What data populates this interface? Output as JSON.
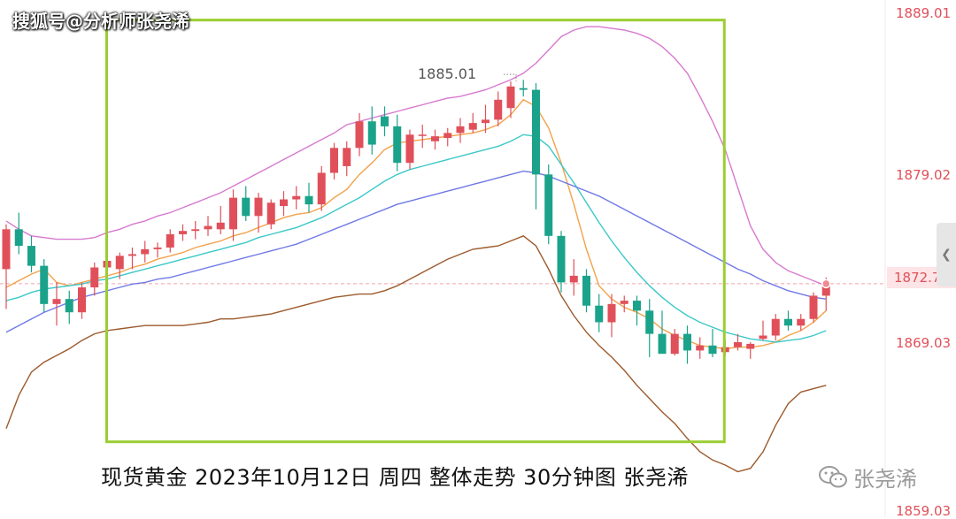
{
  "watermark": "搜狐号@分析师张尧浠",
  "caption": "现货黄金  2023年10月12日  周四 整体走势 30分钟图  张尧浠",
  "wechat_label": "张尧浠",
  "peak_label": "1885.01",
  "current_price": "1872.72",
  "price_axis": [
    "1889.01",
    "1879.02",
    "1869.03",
    "1859.03"
  ],
  "icons": {
    "wechat": "wechat-icon",
    "side_tab": "chevron-left-icon"
  },
  "colors": {
    "up": "#e0505a",
    "down": "#1aa38a",
    "ma5": "#f2a24a",
    "ma10": "#3cc8c8",
    "ma30": "#6f79e6",
    "boll_upper": "#d77ad0",
    "boll_lower": "#9c5a2c",
    "highlight_box": "#9acd32"
  },
  "chart_data": {
    "type": "candlestick",
    "timeframe": "30分钟",
    "instrument": "现货黄金",
    "y_ticks": [
      1889.01,
      1879.02,
      1869.03,
      1859.03
    ],
    "ylim": [
      1859.03,
      1889.5
    ],
    "current_price": 1872.72,
    "peak": 1885.01,
    "candles": [
      [
        1873.6,
        1876.3,
        1871.2,
        1876.0
      ],
      [
        1876.0,
        1877.0,
        1874.5,
        1875.0
      ],
      [
        1875.0,
        1875.6,
        1873.4,
        1873.8
      ],
      [
        1873.8,
        1874.2,
        1871.0,
        1871.5
      ],
      [
        1871.5,
        1872.8,
        1870.2,
        1871.8
      ],
      [
        1871.8,
        1872.3,
        1870.3,
        1871.0
      ],
      [
        1871.0,
        1872.8,
        1870.6,
        1872.5
      ],
      [
        1872.5,
        1874.0,
        1872.0,
        1873.7
      ],
      [
        1873.7,
        1874.4,
        1873.2,
        1874.1
      ],
      [
        1873.6,
        1874.6,
        1873.0,
        1874.4
      ],
      [
        1874.4,
        1874.9,
        1873.6,
        1874.5
      ],
      [
        1874.5,
        1875.3,
        1874.0,
        1874.8
      ],
      [
        1874.8,
        1875.2,
        1874.3,
        1874.9
      ],
      [
        1874.9,
        1876.0,
        1874.6,
        1875.7
      ],
      [
        1875.7,
        1876.3,
        1875.3,
        1875.9
      ],
      [
        1875.9,
        1876.5,
        1875.4,
        1876.0
      ],
      [
        1876.0,
        1876.8,
        1875.6,
        1876.2
      ],
      [
        1876.0,
        1877.4,
        1875.7,
        1876.4
      ],
      [
        1876.0,
        1878.4,
        1875.3,
        1877.9
      ],
      [
        1877.9,
        1878.6,
        1876.5,
        1876.8
      ],
      [
        1876.8,
        1878.2,
        1875.8,
        1877.9
      ],
      [
        1876.3,
        1877.8,
        1876.0,
        1877.6
      ],
      [
        1877.4,
        1878.3,
        1876.8,
        1877.8
      ],
      [
        1877.8,
        1878.6,
        1877.2,
        1878.0
      ],
      [
        1878.0,
        1878.8,
        1877.0,
        1877.5
      ],
      [
        1877.5,
        1879.8,
        1877.1,
        1879.4
      ],
      [
        1879.4,
        1881.2,
        1879.0,
        1880.9
      ],
      [
        1879.8,
        1881.3,
        1879.2,
        1880.9
      ],
      [
        1880.9,
        1883.0,
        1880.4,
        1882.5
      ],
      [
        1882.5,
        1883.4,
        1880.5,
        1881.1
      ],
      [
        1882.8,
        1883.4,
        1881.6,
        1882.2
      ],
      [
        1882.2,
        1882.9,
        1879.5,
        1880.0
      ],
      [
        1880.0,
        1882.0,
        1879.6,
        1881.7
      ],
      [
        1881.7,
        1882.3,
        1880.9,
        1881.7
      ],
      [
        1881.3,
        1882.0,
        1880.8,
        1881.6
      ],
      [
        1881.5,
        1882.1,
        1881.0,
        1881.8
      ],
      [
        1881.8,
        1882.7,
        1881.2,
        1882.2
      ],
      [
        1882.0,
        1883.0,
        1881.8,
        1882.4
      ],
      [
        1882.4,
        1883.5,
        1881.8,
        1882.6
      ],
      [
        1882.6,
        1884.3,
        1882.2,
        1883.8
      ],
      [
        1883.3,
        1884.9,
        1882.7,
        1884.6
      ],
      [
        1884.5,
        1885.0,
        1884.0,
        1884.4
      ],
      [
        1884.4,
        1884.8,
        1877.2,
        1879.3
      ],
      [
        1879.3,
        1879.9,
        1875.1,
        1875.6
      ],
      [
        1875.6,
        1875.9,
        1872.2,
        1872.8
      ],
      [
        1872.8,
        1874.2,
        1872.0,
        1873.2
      ],
      [
        1873.2,
        1873.6,
        1871.0,
        1871.4
      ],
      [
        1871.4,
        1872.1,
        1869.8,
        1870.4
      ],
      [
        1870.4,
        1872.1,
        1869.5,
        1871.5
      ],
      [
        1871.5,
        1872.0,
        1871.0,
        1871.7
      ],
      [
        1871.7,
        1872.0,
        1870.2,
        1871.1
      ],
      [
        1871.1,
        1871.8,
        1868.3,
        1869.7
      ],
      [
        1869.7,
        1871.1,
        1868.6,
        1868.5
      ],
      [
        1868.5,
        1870.0,
        1868.4,
        1869.7
      ],
      [
        1869.7,
        1870.2,
        1867.9,
        1868.7
      ],
      [
        1868.7,
        1869.5,
        1868.2,
        1869.0
      ],
      [
        1869.0,
        1870.0,
        1868.3,
        1868.5
      ],
      [
        1868.6,
        1869.3,
        1868.4,
        1868.9
      ],
      [
        1868.9,
        1869.7,
        1868.7,
        1869.2
      ],
      [
        1868.8,
        1869.2,
        1868.2,
        1869.1
      ],
      [
        1869.4,
        1870.5,
        1869.3,
        1869.6
      ],
      [
        1869.6,
        1870.9,
        1869.3,
        1870.6
      ],
      [
        1870.6,
        1871.1,
        1869.9,
        1870.2
      ],
      [
        1870.2,
        1870.9,
        1869.9,
        1870.6
      ],
      [
        1870.6,
        1872.2,
        1870.4,
        1872.0
      ],
      [
        1872.0,
        1873.1,
        1871.1,
        1872.7
      ]
    ],
    "series": [
      {
        "name": "MA5",
        "values": [
          1872.5,
          1872.9,
          1873.3,
          1873.6,
          1872.8,
          1872.6,
          1872.8,
          1873.0,
          1873.2,
          1873.4,
          1873.7,
          1873.9,
          1874.2,
          1874.4,
          1874.6,
          1874.9,
          1875.1,
          1875.3,
          1875.6,
          1875.8,
          1876.1,
          1876.4,
          1876.7,
          1876.9,
          1877.0,
          1877.3,
          1877.9,
          1878.4,
          1879.3,
          1880.0,
          1880.8,
          1881.2,
          1881.3,
          1881.4,
          1881.5,
          1881.6,
          1881.7,
          1881.8,
          1882.0,
          1882.3,
          1882.9,
          1883.8,
          1883.4,
          1882.1,
          1880.0,
          1877.5,
          1874.8,
          1872.6,
          1871.8,
          1871.3,
          1871.0,
          1870.6,
          1870.0,
          1869.6,
          1869.3,
          1869.0,
          1868.9,
          1868.8,
          1868.9,
          1868.9,
          1869.0,
          1869.2,
          1869.6,
          1869.9,
          1870.4,
          1871.1
        ]
      },
      {
        "name": "MA10",
        "values": [
          1871.7,
          1871.9,
          1872.2,
          1872.4,
          1872.5,
          1872.6,
          1872.7,
          1872.9,
          1873.0,
          1873.2,
          1873.4,
          1873.6,
          1873.8,
          1874.0,
          1874.2,
          1874.4,
          1874.6,
          1874.8,
          1875.0,
          1875.2,
          1875.5,
          1875.7,
          1875.9,
          1876.1,
          1876.4,
          1876.7,
          1877.1,
          1877.5,
          1877.9,
          1878.4,
          1878.9,
          1879.3,
          1879.6,
          1879.8,
          1880.0,
          1880.2,
          1880.4,
          1880.6,
          1880.8,
          1881.0,
          1881.3,
          1881.7,
          1881.6,
          1881.0,
          1879.9,
          1878.8,
          1877.6,
          1876.4,
          1875.3,
          1874.3,
          1873.4,
          1872.6,
          1871.9,
          1871.3,
          1870.8,
          1870.4,
          1870.1,
          1869.8,
          1869.6,
          1869.4,
          1869.3,
          1869.2,
          1869.3,
          1869.4,
          1869.6,
          1869.9
        ]
      },
      {
        "name": "MA30",
        "values": [
          1869.8,
          1870.2,
          1870.6,
          1871.0,
          1871.3,
          1871.6,
          1871.9,
          1872.1,
          1872.3,
          1872.5,
          1872.7,
          1872.8,
          1873.0,
          1873.1,
          1873.3,
          1873.5,
          1873.7,
          1873.9,
          1874.1,
          1874.3,
          1874.5,
          1874.7,
          1874.9,
          1875.1,
          1875.4,
          1875.7,
          1876.0,
          1876.3,
          1876.6,
          1876.9,
          1877.2,
          1877.5,
          1877.7,
          1877.9,
          1878.1,
          1878.3,
          1878.5,
          1878.7,
          1878.9,
          1879.1,
          1879.3,
          1879.5,
          1879.4,
          1879.2,
          1878.9,
          1878.6,
          1878.3,
          1878.0,
          1877.6,
          1877.2,
          1876.8,
          1876.4,
          1876.0,
          1875.6,
          1875.2,
          1874.8,
          1874.4,
          1874.0,
          1873.6,
          1873.3,
          1872.9,
          1872.6,
          1872.3,
          1872.1,
          1871.9,
          1871.8
        ]
      },
      {
        "name": "BOLL上轨",
        "values": [
          1876.5,
          1876.0,
          1875.6,
          1875.5,
          1875.4,
          1875.4,
          1875.4,
          1875.5,
          1875.8,
          1876.0,
          1876.3,
          1876.5,
          1876.8,
          1877.0,
          1877.3,
          1877.6,
          1877.9,
          1878.2,
          1878.6,
          1879.0,
          1879.4,
          1879.8,
          1880.2,
          1880.6,
          1881.0,
          1881.4,
          1881.8,
          1882.3,
          1882.5,
          1882.7,
          1882.9,
          1883.1,
          1883.3,
          1883.5,
          1883.7,
          1883.9,
          1884.0,
          1884.2,
          1884.4,
          1884.7,
          1885.0,
          1885.4,
          1886.0,
          1886.8,
          1887.6,
          1888.0,
          1888.2,
          1888.2,
          1888.1,
          1888.0,
          1887.8,
          1887.5,
          1887.0,
          1886.3,
          1885.4,
          1884.0,
          1882.5,
          1880.8,
          1878.5,
          1876.2,
          1874.8,
          1874.0,
          1873.5,
          1873.2,
          1872.9,
          1872.6
        ]
      },
      {
        "name": "BOLL下轨",
        "values": [
          1864.0,
          1866.0,
          1867.4,
          1868.0,
          1868.4,
          1868.8,
          1869.3,
          1869.7,
          1869.9,
          1870.0,
          1870.1,
          1870.2,
          1870.2,
          1870.2,
          1870.2,
          1870.3,
          1870.4,
          1870.6,
          1870.6,
          1870.7,
          1870.8,
          1870.9,
          1871.1,
          1871.3,
          1871.5,
          1871.7,
          1871.9,
          1872.0,
          1872.1,
          1872.1,
          1872.3,
          1872.6,
          1873.0,
          1873.4,
          1873.8,
          1874.2,
          1874.5,
          1874.8,
          1874.9,
          1875.0,
          1875.3,
          1875.6,
          1875.0,
          1873.6,
          1872.0,
          1870.8,
          1869.8,
          1869.0,
          1868.3,
          1867.5,
          1866.6,
          1865.8,
          1865.0,
          1864.3,
          1863.4,
          1862.6,
          1862.1,
          1861.8,
          1861.4,
          1861.6,
          1862.6,
          1864.2,
          1865.5,
          1866.2,
          1866.4,
          1866.6
        ]
      }
    ],
    "highlight_box": {
      "from_index": 8,
      "to_index": 57,
      "price_top": 1888.6,
      "price_bottom": 1863.2
    }
  }
}
